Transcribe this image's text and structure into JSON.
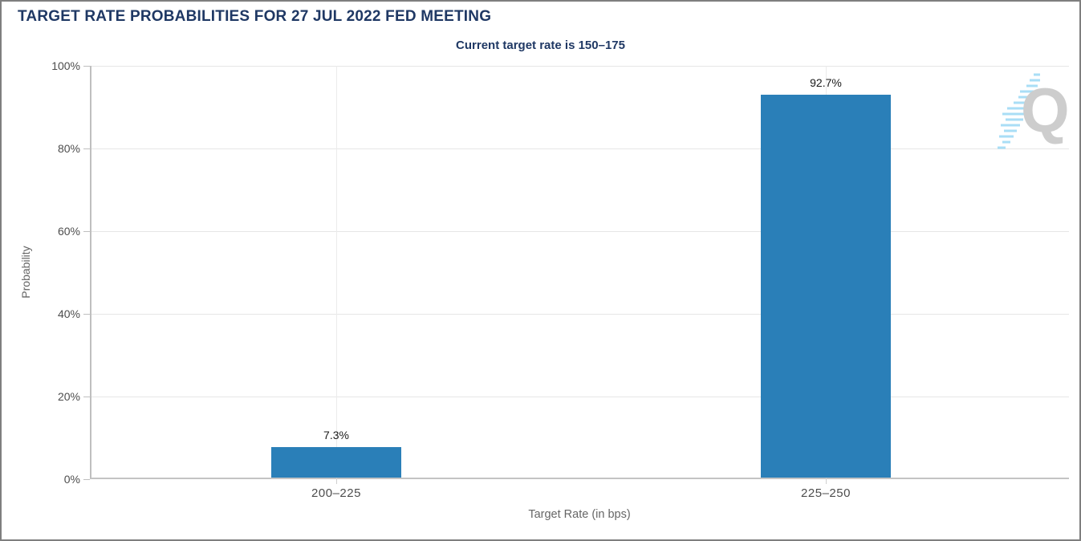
{
  "page": {
    "background": "#ffffff",
    "border_color": "#7f7f7f"
  },
  "chart_data": {
    "type": "bar",
    "title": "TARGET RATE PROBABILITIES FOR 27 JUL 2022 FED MEETING",
    "subtitle": "Current target rate is 150–175",
    "categories": [
      "200–225",
      "225–250"
    ],
    "values": [
      7.3,
      92.7
    ],
    "value_labels": [
      "7.3%",
      "92.7%"
    ],
    "xlabel": "Target Rate (in bps)",
    "ylabel": "Probability",
    "ylim": [
      0,
      100
    ],
    "ytick_step": 20,
    "ytick_labels": [
      "0%",
      "20%",
      "40%",
      "60%",
      "80%",
      "100%"
    ],
    "grid": true,
    "legend": false,
    "bar_color": "#2a7fb8",
    "title_color": "#1f3864",
    "axis_text_color": "#4d4d4d",
    "axis_title_color": "#666666"
  },
  "watermark": {
    "letter": "Q",
    "letter_color": "#cbcbcb",
    "dash_color": "#a5ddf6"
  }
}
